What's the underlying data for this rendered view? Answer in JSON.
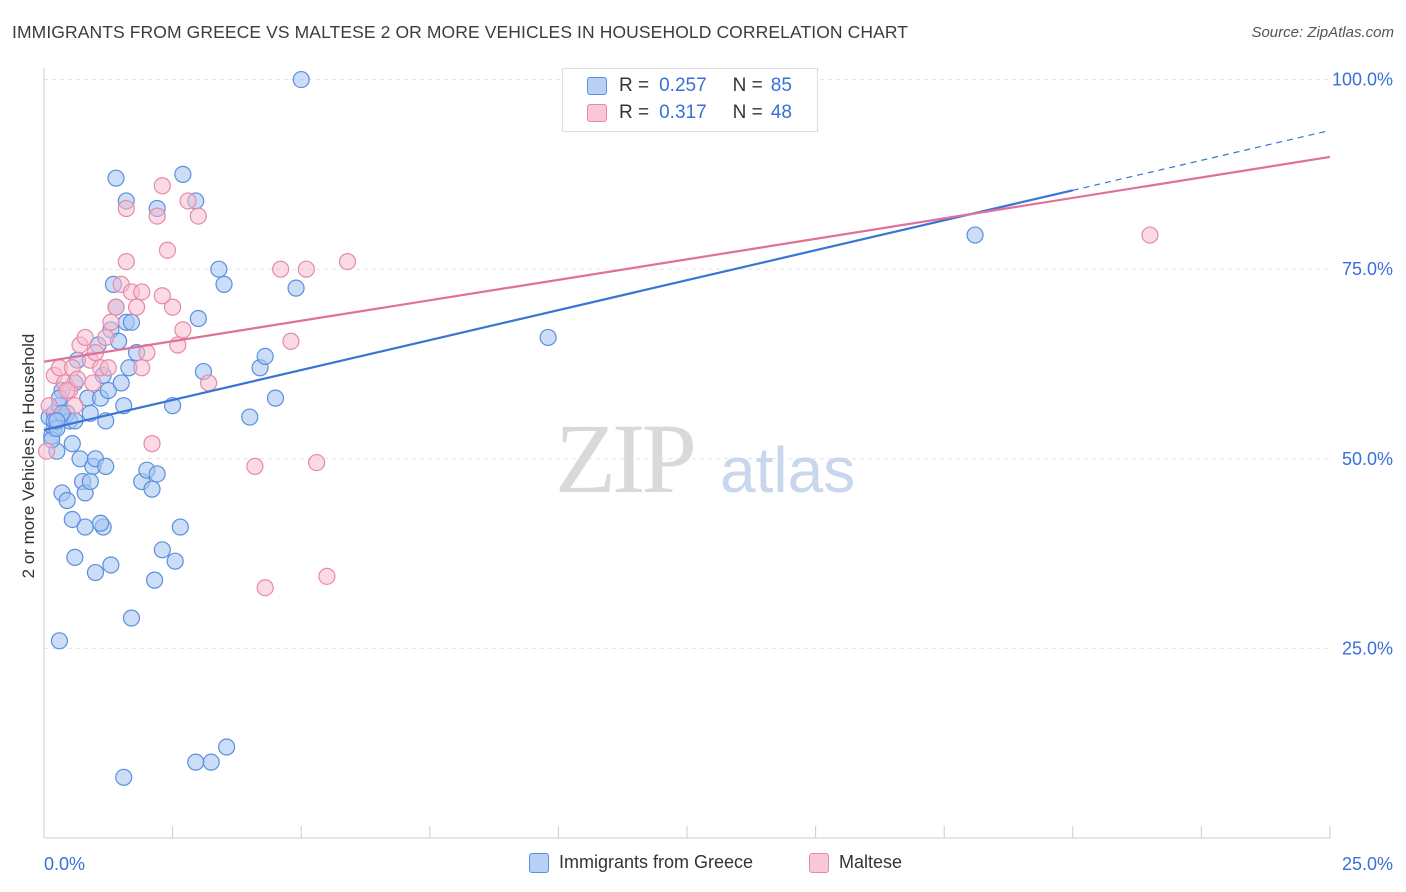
{
  "header": {
    "title": "IMMIGRANTS FROM GREECE VS MALTESE 2 OR MORE VEHICLES IN HOUSEHOLD CORRELATION CHART",
    "source": "Source: ZipAtlas.com"
  },
  "legend": {
    "items": [
      {
        "r_label": "R =",
        "r_value": "0.257",
        "n_label": "N =",
        "n_value": "85"
      },
      {
        "r_label": "R =",
        "r_value": "0.317",
        "n_label": "N =",
        "n_value": "48"
      }
    ]
  },
  "bottom_legend": [
    "Immigrants from Greece",
    "Maltese"
  ],
  "colors": {
    "greece_fill": "#a9c6f2",
    "greece_stroke": "#5b8fdf",
    "greece_line": "#3a74d4",
    "maltese_fill": "#f6bcd0",
    "maltese_stroke": "#e889a8",
    "maltese_line": "#e0709a",
    "tick_label": "#3a6fd8"
  },
  "watermark": {
    "zip": "ZIP",
    "atlas": "atlas"
  },
  "chart_data": {
    "type": "scatter",
    "title": "IMMIGRANTS FROM GREECE VS MALTESE 2 OR MORE VEHICLES IN HOUSEHOLD CORRELATION CHART",
    "xlabel": "",
    "ylabel": "2 or more Vehicles in Household",
    "xlim": [
      0,
      25
    ],
    "ylim": [
      0,
      101
    ],
    "x_tick_labels": [
      "0.0%",
      "25.0%"
    ],
    "y_ticks": [
      {
        "value": 25,
        "label": "25.0%"
      },
      {
        "value": 50,
        "label": "50.0%"
      },
      {
        "value": 75,
        "label": "75.0%"
      },
      {
        "value": 100,
        "label": "100.0%"
      }
    ],
    "grid": true,
    "legend_position": "top-center",
    "series": [
      {
        "name": "Immigrants from Greece",
        "r": 0.257,
        "n": 85,
        "trend": {
          "x0": 0,
          "y0": 53.8,
          "x1": 25,
          "y1": 93.3,
          "solid_until_x": 20
        },
        "points": [
          [
            0.1,
            55.5
          ],
          [
            0.15,
            53
          ],
          [
            0.2,
            56
          ],
          [
            0.2,
            54
          ],
          [
            0.25,
            51
          ],
          [
            0.3,
            57
          ],
          [
            0.35,
            59
          ],
          [
            0.4,
            55.5
          ],
          [
            0.45,
            56
          ],
          [
            0.5,
            55
          ],
          [
            0.55,
            52
          ],
          [
            0.6,
            60
          ],
          [
            0.65,
            63
          ],
          [
            0.7,
            50
          ],
          [
            0.75,
            47
          ],
          [
            0.8,
            45.5
          ],
          [
            0.85,
            58
          ],
          [
            0.9,
            56
          ],
          [
            0.95,
            49
          ],
          [
            1.0,
            50
          ],
          [
            1.05,
            65
          ],
          [
            1.1,
            58
          ],
          [
            1.15,
            61
          ],
          [
            1.2,
            55
          ],
          [
            1.25,
            59
          ],
          [
            1.3,
            67
          ],
          [
            1.35,
            73
          ],
          [
            1.4,
            70
          ],
          [
            1.45,
            65.5
          ],
          [
            1.5,
            60
          ],
          [
            1.55,
            57
          ],
          [
            1.6,
            68
          ],
          [
            1.65,
            62
          ],
          [
            1.7,
            68
          ],
          [
            1.8,
            64
          ],
          [
            1.9,
            47
          ],
          [
            2.0,
            48.5
          ],
          [
            2.1,
            46
          ],
          [
            2.15,
            34
          ],
          [
            2.2,
            48
          ],
          [
            2.3,
            38
          ],
          [
            2.5,
            57
          ],
          [
            2.55,
            36.5
          ],
          [
            2.65,
            41
          ],
          [
            3.0,
            68.5
          ],
          [
            3.1,
            61.5
          ],
          [
            3.25,
            10
          ],
          [
            3.4,
            75
          ],
          [
            3.5,
            73
          ],
          [
            3.55,
            12
          ],
          [
            4.0,
            55.5
          ],
          [
            4.2,
            62
          ],
          [
            4.3,
            63.5
          ],
          [
            4.5,
            58
          ],
          [
            4.9,
            72.5
          ],
          [
            5.0,
            100
          ],
          [
            9.8,
            66
          ],
          [
            18.1,
            79.5
          ],
          [
            0.3,
            26
          ],
          [
            1.4,
            87
          ],
          [
            2.2,
            83
          ],
          [
            1.6,
            84
          ],
          [
            1.55,
            8
          ],
          [
            2.95,
            10
          ],
          [
            1.0,
            35
          ],
          [
            0.55,
            42
          ],
          [
            0.8,
            41
          ],
          [
            1.15,
            41
          ],
          [
            0.3,
            58
          ],
          [
            0.6,
            55
          ],
          [
            1.3,
            36
          ],
          [
            1.7,
            29
          ],
          [
            2.7,
            87.5
          ],
          [
            2.95,
            84
          ],
          [
            0.6,
            37
          ],
          [
            0.35,
            45.5
          ],
          [
            0.45,
            44.5
          ],
          [
            0.9,
            47
          ],
          [
            1.1,
            41.5
          ],
          [
            1.2,
            49
          ],
          [
            0.2,
            55
          ],
          [
            0.15,
            52.5
          ],
          [
            0.25,
            54
          ],
          [
            0.35,
            56
          ],
          [
            0.25,
            55
          ]
        ]
      },
      {
        "name": "Maltese",
        "r": 0.317,
        "n": 48,
        "trend": {
          "x0": 0,
          "y0": 62.8,
          "x1": 25,
          "y1": 89.8
        },
        "points": [
          [
            0.05,
            51
          ],
          [
            0.1,
            57
          ],
          [
            0.2,
            61
          ],
          [
            0.3,
            62
          ],
          [
            0.4,
            60
          ],
          [
            0.5,
            59
          ],
          [
            0.55,
            62
          ],
          [
            0.6,
            57
          ],
          [
            0.7,
            65
          ],
          [
            0.8,
            66
          ],
          [
            0.9,
            63
          ],
          [
            1.0,
            64
          ],
          [
            1.1,
            62
          ],
          [
            1.2,
            66
          ],
          [
            1.3,
            68
          ],
          [
            1.4,
            70
          ],
          [
            1.5,
            73
          ],
          [
            1.6,
            76
          ],
          [
            1.7,
            72
          ],
          [
            1.8,
            70
          ],
          [
            1.9,
            62
          ],
          [
            2.0,
            64
          ],
          [
            2.1,
            52
          ],
          [
            2.2,
            82
          ],
          [
            2.3,
            86
          ],
          [
            2.4,
            77.5
          ],
          [
            2.5,
            70
          ],
          [
            2.6,
            65
          ],
          [
            2.7,
            67
          ],
          [
            2.8,
            84
          ],
          [
            3.0,
            82
          ],
          [
            3.2,
            60
          ],
          [
            4.1,
            49
          ],
          [
            4.3,
            33
          ],
          [
            4.6,
            75
          ],
          [
            4.8,
            65.5
          ],
          [
            5.1,
            75
          ],
          [
            5.3,
            49.5
          ],
          [
            5.5,
            34.5
          ],
          [
            5.9,
            76
          ],
          [
            21.5,
            79.5
          ],
          [
            1.6,
            83
          ],
          [
            2.3,
            71.5
          ],
          [
            1.9,
            72
          ],
          [
            0.45,
            59
          ],
          [
            0.65,
            60.5
          ],
          [
            0.95,
            60
          ],
          [
            1.25,
            62
          ]
        ]
      }
    ]
  }
}
